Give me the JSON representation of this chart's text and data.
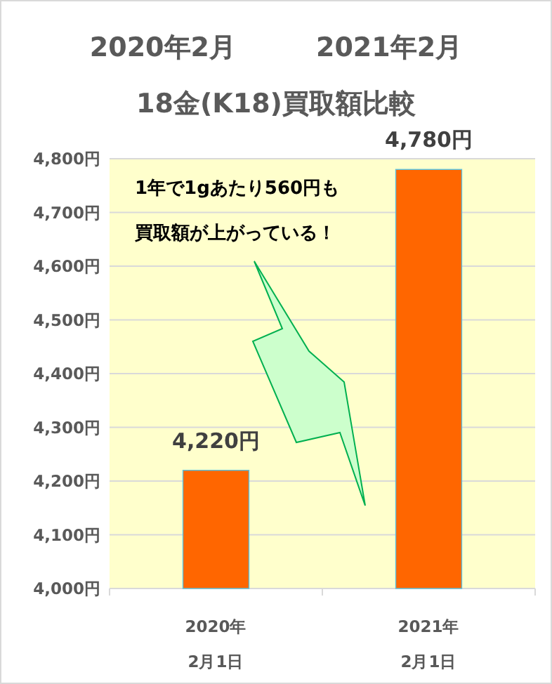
{
  "chart_data": {
    "type": "bar",
    "title": "2020年2月　　　2021年2月",
    "subtitle": "18金(K18)買取額比較",
    "categories": [
      "2020年\n2月1日",
      "2021年\n2月1日"
    ],
    "values": [
      4220,
      4780
    ],
    "color": "#ff6600",
    "value_labels": [
      "4,220円",
      "4,780円"
    ],
    "ylim": [
      4000,
      4800
    ],
    "yticks": [
      {
        "value": 4000,
        "label": "4,000円"
      },
      {
        "value": 4100,
        "label": "4,100円"
      },
      {
        "value": 4200,
        "label": "4,200円"
      },
      {
        "value": 4300,
        "label": "4,300円"
      },
      {
        "value": 4400,
        "label": "4,400円"
      },
      {
        "value": 4500,
        "label": "4,500円"
      },
      {
        "value": 4600,
        "label": "4,600円"
      },
      {
        "value": 4700,
        "label": "4,700円"
      },
      {
        "value": 4800,
        "label": "4,800円"
      }
    ],
    "grid": "y",
    "annotations": [
      "1年で1gあたり560円も",
      "買取額が上がっている！"
    ]
  }
}
